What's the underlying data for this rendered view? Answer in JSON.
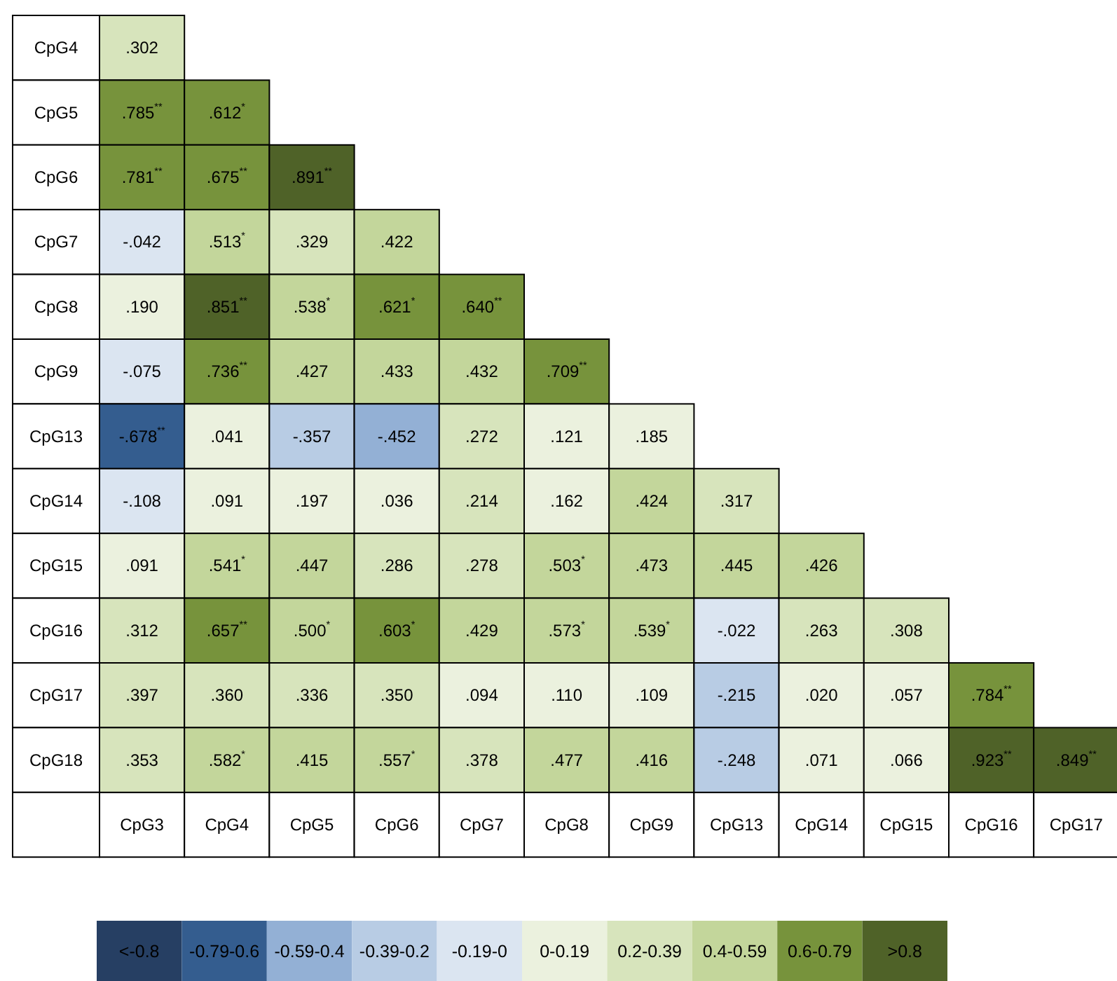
{
  "chart_data": {
    "type": "heatmap",
    "categories": [
      "CpG3",
      "CpG4",
      "CpG5",
      "CpG6",
      "CpG7",
      "CpG8",
      "CpG9",
      "CpG13",
      "CpG14",
      "CpG15",
      "CpG16",
      "CpG17"
    ],
    "y_categories": [
      "CpG4",
      "CpG5",
      "CpG6",
      "CpG7",
      "CpG8",
      "CpG9",
      "CpG13",
      "CpG14",
      "CpG15",
      "CpG16",
      "CpG17",
      "CpG18"
    ],
    "cells": [
      [
        0.302,
        null,
        null,
        null,
        null,
        null,
        null,
        null,
        null,
        null,
        null,
        null
      ],
      [
        0.785,
        0.612,
        null,
        null,
        null,
        null,
        null,
        null,
        null,
        null,
        null,
        null
      ],
      [
        0.781,
        0.675,
        0.891,
        null,
        null,
        null,
        null,
        null,
        null,
        null,
        null,
        null
      ],
      [
        -0.042,
        0.513,
        0.329,
        0.422,
        null,
        null,
        null,
        null,
        null,
        null,
        null,
        null
      ],
      [
        0.19,
        0.851,
        0.538,
        0.621,
        0.64,
        null,
        null,
        null,
        null,
        null,
        null,
        null
      ],
      [
        -0.075,
        0.736,
        0.427,
        0.433,
        0.432,
        0.709,
        null,
        null,
        null,
        null,
        null,
        null
      ],
      [
        -0.678,
        0.041,
        -0.357,
        -0.452,
        0.272,
        0.121,
        0.185,
        null,
        null,
        null,
        null,
        null
      ],
      [
        -0.108,
        0.091,
        0.197,
        0.036,
        0.214,
        0.162,
        0.424,
        0.317,
        null,
        null,
        null,
        null
      ],
      [
        0.091,
        0.541,
        0.447,
        0.286,
        0.278,
        0.503,
        0.473,
        0.445,
        0.426,
        null,
        null,
        null
      ],
      [
        0.312,
        0.657,
        0.5,
        0.603,
        0.429,
        0.573,
        0.539,
        -0.022,
        0.263,
        0.308,
        null,
        null
      ],
      [
        0.397,
        0.36,
        0.336,
        0.35,
        0.094,
        0.11,
        0.109,
        -0.215,
        0.02,
        0.057,
        0.784,
        null
      ],
      [
        0.353,
        0.582,
        0.415,
        0.557,
        0.378,
        0.477,
        0.416,
        -0.248,
        0.071,
        0.066,
        0.923,
        0.849
      ]
    ],
    "cell_labels": [
      [
        ".302",
        null,
        null,
        null,
        null,
        null,
        null,
        null,
        null,
        null,
        null,
        null
      ],
      [
        ".785$^{**}$",
        ".612$^{*}$",
        null,
        null,
        null,
        null,
        null,
        null,
        null,
        null,
        null,
        null
      ],
      [
        ".781$^{**}$",
        ".675$^{**}$",
        ".891$^{**}$",
        null,
        null,
        null,
        null,
        null,
        null,
        null,
        null,
        null
      ],
      [
        "-.042",
        ".513$^{*}$",
        ".329",
        ".422",
        null,
        null,
        null,
        null,
        null,
        null,
        null,
        null
      ],
      [
        ".190",
        ".851$^{**}$",
        ".538$^{*}$",
        ".621$^{*}$",
        ".640$^{**}$",
        null,
        null,
        null,
        null,
        null,
        null,
        null
      ],
      [
        "-.075",
        ".736$^{**}$",
        ".427",
        ".433",
        ".432",
        ".709$^{**}$",
        null,
        null,
        null,
        null,
        null,
        null
      ],
      [
        "-.678$^{**}$",
        ".041",
        "-.357",
        "-.452",
        ".272",
        ".121",
        ".185",
        null,
        null,
        null,
        null,
        null
      ],
      [
        "-.108",
        ".091",
        ".197",
        ".036",
        ".214",
        ".162",
        ".424",
        ".317",
        null,
        null,
        null,
        null
      ],
      [
        ".091",
        ".541$^{*}$",
        ".447",
        ".286",
        ".278",
        ".503$^{*}$",
        ".473",
        ".445",
        ".426",
        null,
        null,
        null
      ],
      [
        ".312",
        ".657$^{**}$",
        ".500$^{*}$",
        ".603$^{*}$",
        ".429",
        ".573$^{*}$",
        ".539$^{*}$",
        "-.022",
        ".263",
        ".308",
        null,
        null
      ],
      [
        ".397",
        ".360",
        ".336",
        ".350",
        ".094",
        ".110",
        ".109",
        "-.215",
        ".020",
        ".057",
        ".784$^{**}$",
        null
      ],
      [
        ".353",
        ".582$^{*}$",
        ".415",
        ".557$^{*}$",
        ".378",
        ".477",
        ".416",
        "-.248",
        ".071",
        ".066",
        ".923$^{**}$",
        ".849$^{**}$"
      ]
    ],
    "clim": [
      -1,
      1
    ],
    "cticks": [
      {
        "value": -0.9,
        "label": "<-0.8"
      },
      {
        "value": -0.7,
        "label": "-0.79-0.6"
      },
      {
        "value": -0.5,
        "label": "-0.59-0.4"
      },
      {
        "value": -0.3,
        "label": "-0.39-0.2"
      },
      {
        "value": -0.1,
        "label": "-0.19-0"
      },
      {
        "value": 0.1,
        "label": "0-0.19"
      },
      {
        "value": 0.3,
        "label": "0.2-0.39"
      },
      {
        "value": 0.5,
        "label": "0.4-0.59"
      },
      {
        "value": 0.7,
        "label": "0.6-0.79"
      },
      {
        "value": 0.9,
        "label": ">0.8"
      }
    ],
    "colors": [
      "#263f63",
      "#345d8f",
      "#93b0d5",
      "#b8cce4",
      "#dbe5f1",
      "#ebf1de",
      "#d7e4bc",
      "#c3d69b",
      "#77933c",
      "#4f6228"
    ]
  }
}
